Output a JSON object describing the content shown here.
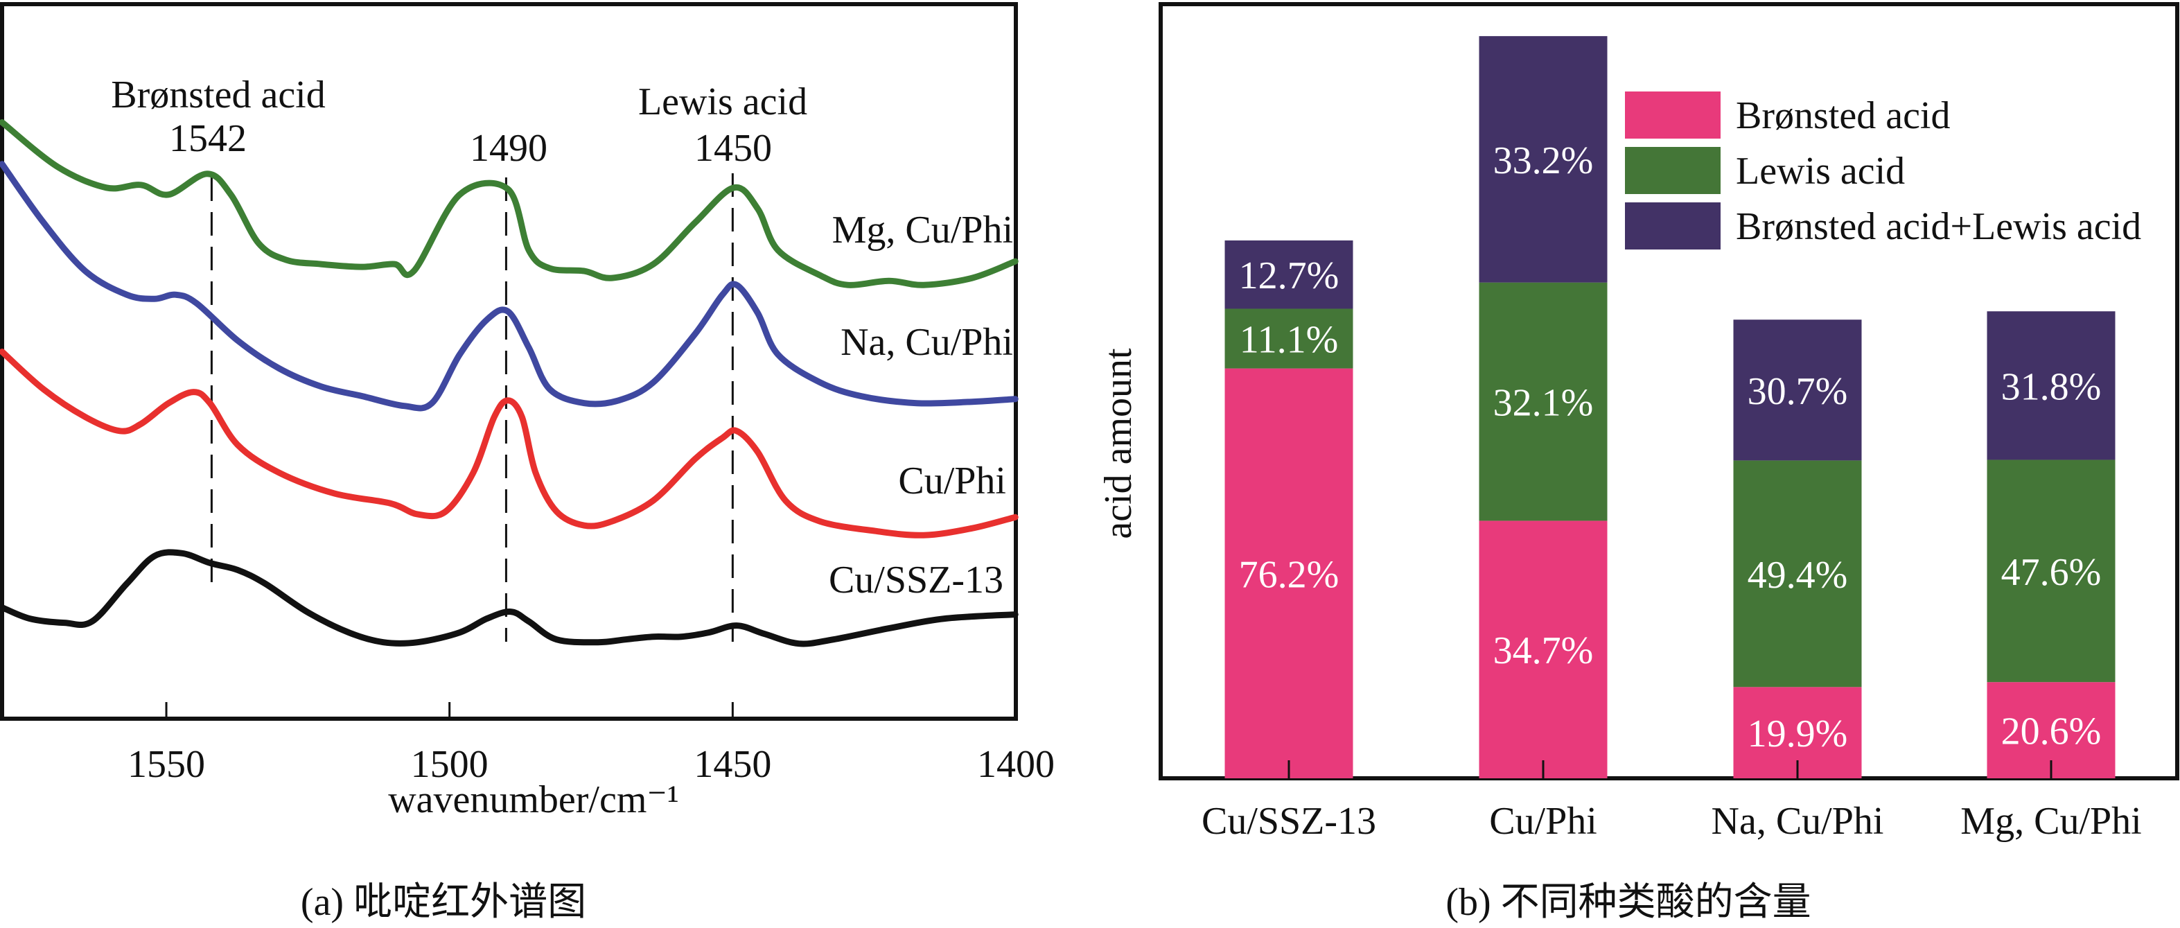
{
  "colors": {
    "mg": "#3d7f34",
    "na": "#3f48a0",
    "cu_phi": "#e8302e",
    "cu_ssz": "#111111",
    "bronsted": "#e83a7b",
    "lewis": "#447637",
    "both": "#423266",
    "axis": "#111111"
  },
  "chart_data": [
    {
      "type": "line",
      "title": "(a) 吡啶红外谱图",
      "xlabel": "wavenumber/cm⁻¹",
      "ylabel": "",
      "xlim": [
        1579,
        1400
      ],
      "ylim": [
        0,
        5.14
      ],
      "xticks": [
        1550,
        1500,
        1450,
        1400
      ],
      "xtick_labels": [
        "1550",
        "1500",
        "1450",
        "1400"
      ],
      "grid": false,
      "annotations": [
        {
          "text": "Brønsted acid",
          "value": "1542",
          "x": 1542
        },
        {
          "text": "",
          "value": "1490",
          "x": 1490
        },
        {
          "text": "Lewis acid",
          "value": "1450",
          "x": 1450
        }
      ],
      "series": [
        {
          "name": "Mg, Cu/Phi",
          "color_key": "mg",
          "x": [
            1579,
            1569.2,
            1560.6,
            1554.5,
            1549.6,
            1542.8,
            1538.6,
            1533.7,
            1528.8,
            1522.7,
            1515.4,
            1509.7,
            1506.3,
            1498.2,
            1489.7,
            1486,
            1482.3,
            1476.2,
            1471.3,
            1464,
            1456.6,
            1449.8,
            1445.6,
            1442,
            1434.6,
            1429.7,
            1422.4,
            1416.3,
            1407.7,
            1400.1
          ],
          "y": [
            4.29,
            3.97,
            3.82,
            3.84,
            3.77,
            3.92,
            3.77,
            3.42,
            3.3,
            3.27,
            3.25,
            3.27,
            3.22,
            3.77,
            3.81,
            3.37,
            3.24,
            3.22,
            3.17,
            3.27,
            3.57,
            3.82,
            3.67,
            3.37,
            3.19,
            3.12,
            3.15,
            3.12,
            3.17,
            3.29
          ]
        },
        {
          "name": "Na, Cu/Phi",
          "color_key": "na",
          "x": [
            1579,
            1571.7,
            1564.3,
            1557,
            1552.1,
            1548.4,
            1544.7,
            1537.4,
            1530.1,
            1522.7,
            1515.4,
            1508,
            1503.1,
            1498.2,
            1493.4,
            1489.7,
            1486,
            1482.3,
            1476.2,
            1470.1,
            1464,
            1456.6,
            1451.8,
            1449.3,
            1445.6,
            1442,
            1434.6,
            1427.3,
            1417.5,
            1407.7,
            1400.1
          ],
          "y": [
            3.99,
            3.57,
            3.22,
            3.05,
            3.02,
            3.05,
            2.99,
            2.72,
            2.52,
            2.39,
            2.32,
            2.25,
            2.27,
            2.62,
            2.87,
            2.93,
            2.67,
            2.37,
            2.27,
            2.29,
            2.42,
            2.77,
            3.05,
            3.12,
            2.92,
            2.62,
            2.42,
            2.32,
            2.27,
            2.28,
            2.3
          ]
        },
        {
          "name": "Cu/Phi",
          "color_key": "cu_phi",
          "x": [
            1579,
            1571.7,
            1564.3,
            1558.2,
            1554.5,
            1549.6,
            1545.2,
            1542.3,
            1537.4,
            1530.1,
            1520.3,
            1510.5,
            1505.6,
            1500.7,
            1495.8,
            1492.1,
            1489.7,
            1487.2,
            1484.8,
            1481.1,
            1476.2,
            1471.3,
            1464,
            1456.6,
            1451.8,
            1449.3,
            1445.6,
            1440.7,
            1434.6,
            1424.8,
            1416.3,
            1407.7,
            1400.1
          ],
          "y": [
            2.64,
            2.37,
            2.17,
            2.07,
            2.12,
            2.27,
            2.35,
            2.27,
            1.97,
            1.77,
            1.62,
            1.55,
            1.47,
            1.49,
            1.77,
            2.17,
            2.29,
            2.17,
            1.77,
            1.49,
            1.39,
            1.42,
            1.57,
            1.87,
            2.02,
            2.07,
            1.92,
            1.57,
            1.42,
            1.35,
            1.32,
            1.37,
            1.45
          ]
        },
        {
          "name": "Cu/SSZ-13",
          "color_key": "cu_ssz",
          "x": [
            1579,
            1574.1,
            1568,
            1563.1,
            1557,
            1552.1,
            1547.2,
            1542.3,
            1537.4,
            1532.5,
            1525.2,
            1517.8,
            1511.7,
            1505.6,
            1498.2,
            1493.4,
            1489.2,
            1486,
            1481.1,
            1473.8,
            1468.9,
            1464,
            1459.1,
            1454.2,
            1449.3,
            1444.4,
            1438.3,
            1432.2,
            1422.4,
            1412.6,
            1400.1
          ],
          "y": [
            0.8,
            0.72,
            0.69,
            0.7,
            0.97,
            1.17,
            1.19,
            1.12,
            1.07,
            0.97,
            0.77,
            0.62,
            0.55,
            0.55,
            0.62,
            0.72,
            0.77,
            0.7,
            0.57,
            0.55,
            0.57,
            0.59,
            0.59,
            0.62,
            0.67,
            0.61,
            0.54,
            0.57,
            0.65,
            0.72,
            0.75
          ]
        }
      ]
    },
    {
      "type": "bar",
      "stacked": true,
      "title": "(b) 不同种类酸的含量",
      "xlabel": "",
      "ylabel": "acid amount",
      "ylim": [
        0,
        5.57
      ],
      "grid": false,
      "legend_position": "top-right",
      "categories": [
        "Cu/SSZ-13",
        "Cu/Phi",
        "Na, Cu/Phi",
        "Mg, Cu/Phi"
      ],
      "totals": [
        3.87,
        5.34,
        3.3,
        3.36
      ],
      "series": [
        {
          "name": "Brønsted acid",
          "color_key": "bronsted",
          "percent": [
            76.2,
            34.7,
            19.9,
            20.6
          ],
          "labels": [
            "76.2%",
            "34.7%",
            "19.9%",
            "20.6%"
          ]
        },
        {
          "name": "Lewis acid",
          "color_key": "lewis",
          "percent": [
            11.1,
            32.1,
            49.4,
            47.6
          ],
          "labels": [
            "11.1%",
            "32.1%",
            "49.4%",
            "47.6%"
          ]
        },
        {
          "name": "Brønsted acid+Lewis acid",
          "color_key": "both",
          "percent": [
            12.7,
            33.2,
            30.7,
            31.8
          ],
          "labels": [
            "12.7%",
            "33.2%",
            "30.7%",
            "31.8%"
          ]
        }
      ]
    }
  ]
}
